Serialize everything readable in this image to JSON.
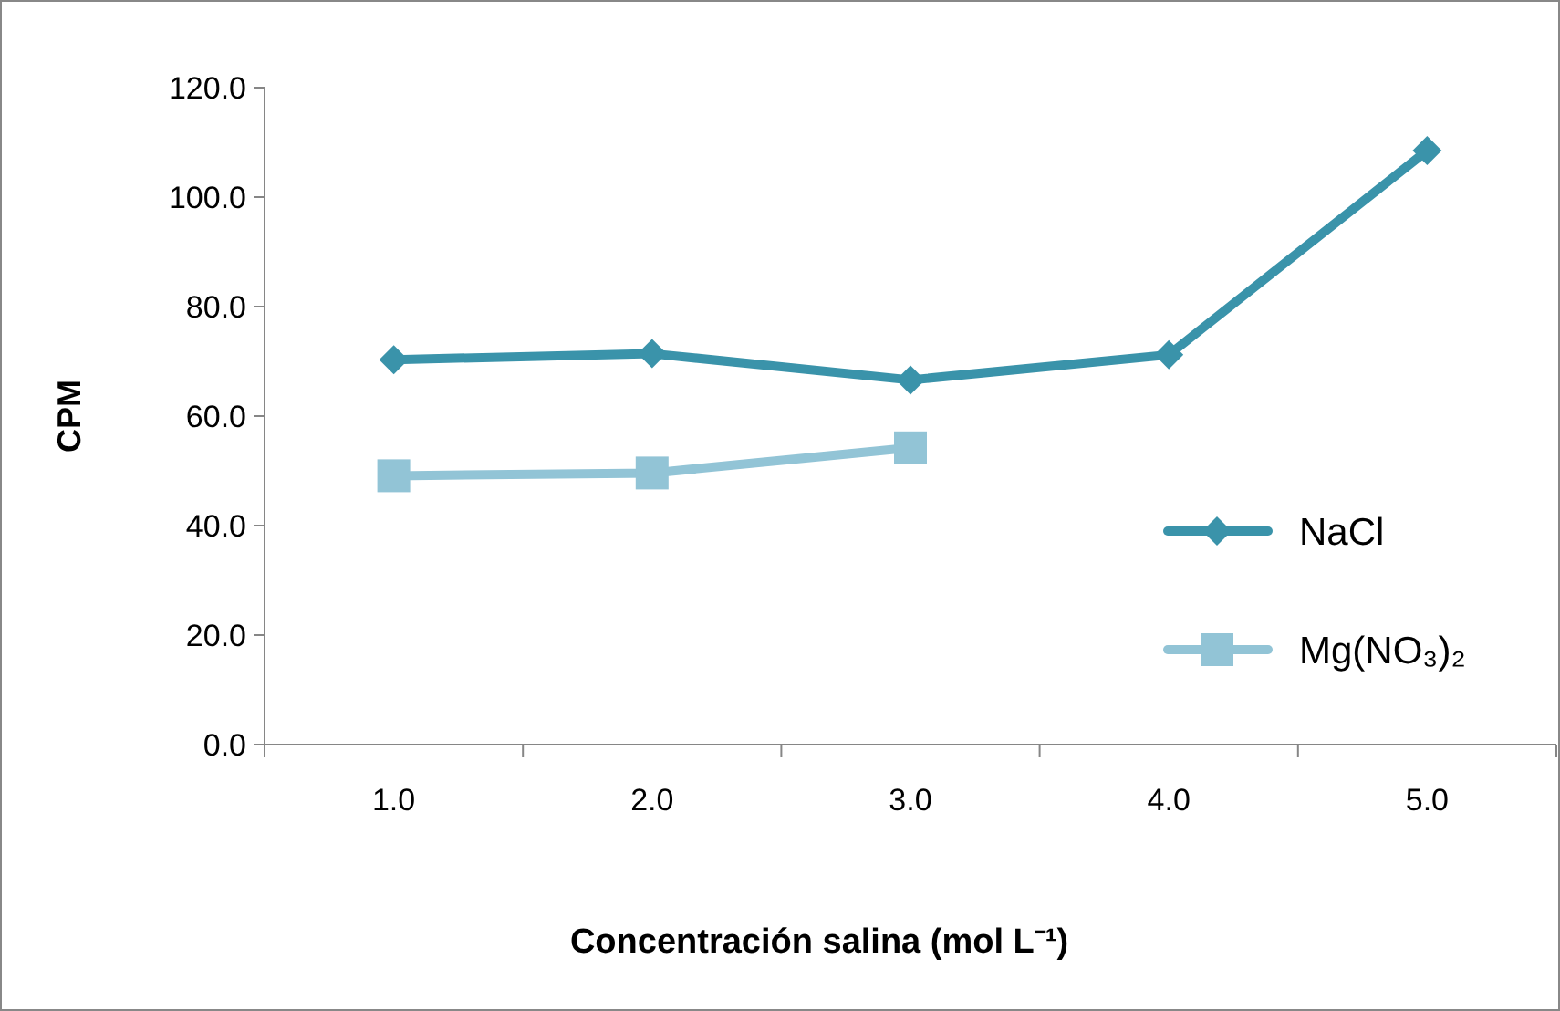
{
  "chart_data": {
    "type": "line",
    "xlabel": "Concentración salina (mol L⁻¹)",
    "ylabel": "CPM",
    "categories": [
      "1.0",
      "2.0",
      "3.0",
      "4.0",
      "5.0"
    ],
    "series": [
      {
        "name": "NaCl",
        "color": "#3a93aa",
        "marker": "diamond",
        "values": [
          70.3,
          71.4,
          66.6,
          71.2,
          108.5
        ]
      },
      {
        "name": "Mg(NO₃)₂",
        "color": "#92c4d6",
        "marker": "square",
        "values": [
          49.1,
          49.6,
          54.2,
          null,
          null
        ]
      }
    ],
    "ylim": [
      0,
      120
    ],
    "yticks": [
      {
        "value": 0,
        "label": "0.0"
      },
      {
        "value": 20,
        "label": "20.0"
      },
      {
        "value": 40,
        "label": "40.0"
      },
      {
        "value": 60,
        "label": "60.0"
      },
      {
        "value": 80,
        "label": "80.0"
      },
      {
        "value": 100,
        "label": "100.0"
      },
      {
        "value": 120,
        "label": "120.0"
      }
    ],
    "grid": false,
    "legend": "right",
    "line_style": "solid"
  }
}
